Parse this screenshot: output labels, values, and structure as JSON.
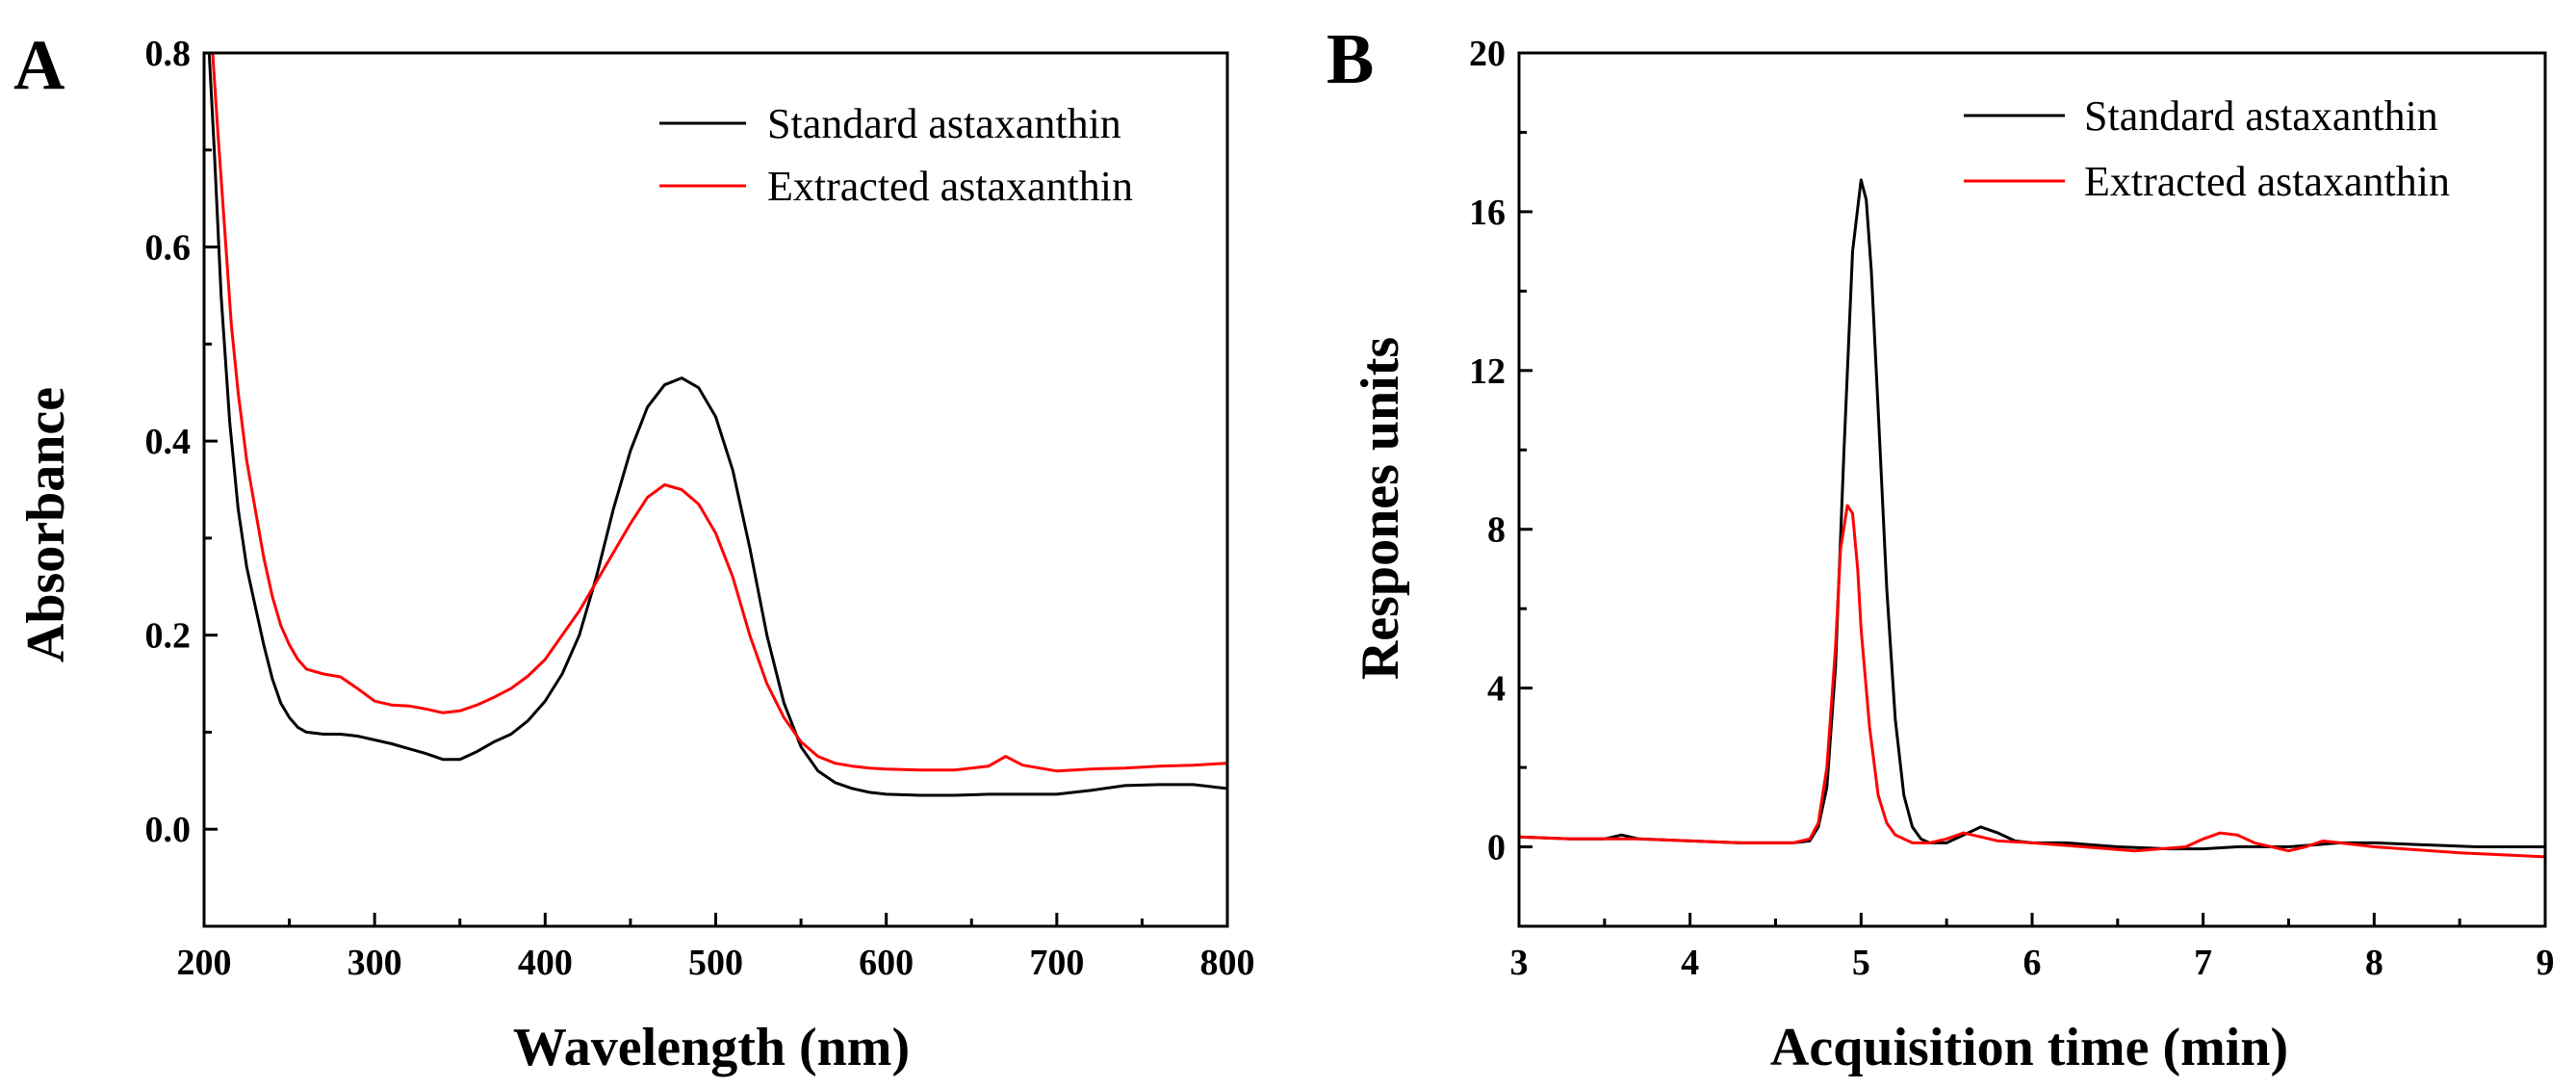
{
  "chart_data": [
    {
      "panel_label": "A",
      "type": "line",
      "xlabel": "Wavelength (nm)",
      "ylabel": "Absorbance",
      "xlim": [
        200,
        800
      ],
      "ylim": [
        -0.1,
        0.8
      ],
      "xticks": [
        200,
        300,
        400,
        500,
        600,
        700,
        800
      ],
      "yticks": [
        0.0,
        0.2,
        0.4,
        0.6,
        0.8
      ],
      "ytick_labels": [
        "0.0",
        "0.2",
        "0.4",
        "0.6",
        "0.8"
      ],
      "legend_position": "top-right",
      "series": [
        {
          "name": "Standard astaxanthin",
          "color": "#000000",
          "x": [
            203,
            206,
            210,
            215,
            220,
            225,
            230,
            235,
            240,
            245,
            250,
            255,
            260,
            270,
            280,
            290,
            300,
            310,
            320,
            330,
            340,
            350,
            360,
            370,
            380,
            390,
            400,
            410,
            420,
            430,
            440,
            450,
            460,
            470,
            480,
            490,
            500,
            510,
            520,
            530,
            540,
            550,
            560,
            570,
            580,
            590,
            600,
            620,
            640,
            660,
            680,
            700,
            720,
            740,
            760,
            780,
            800
          ],
          "y": [
            0.8,
            0.7,
            0.55,
            0.42,
            0.33,
            0.27,
            0.23,
            0.19,
            0.155,
            0.13,
            0.115,
            0.105,
            0.1,
            0.098,
            0.098,
            0.096,
            0.092,
            0.088,
            0.083,
            0.078,
            0.072,
            0.072,
            0.08,
            0.09,
            0.098,
            0.112,
            0.132,
            0.16,
            0.2,
            0.26,
            0.33,
            0.39,
            0.435,
            0.458,
            0.465,
            0.455,
            0.425,
            0.37,
            0.29,
            0.2,
            0.13,
            0.085,
            0.06,
            0.048,
            0.042,
            0.038,
            0.036,
            0.035,
            0.035,
            0.036,
            0.036,
            0.036,
            0.04,
            0.045,
            0.046,
            0.046,
            0.042
          ]
        },
        {
          "name": "Extracted astaxanthin",
          "color": "#ff0000",
          "x": [
            205,
            208,
            212,
            216,
            220,
            225,
            230,
            235,
            240,
            245,
            250,
            255,
            260,
            270,
            280,
            290,
            300,
            310,
            320,
            330,
            340,
            350,
            360,
            370,
            380,
            390,
            400,
            410,
            420,
            430,
            440,
            450,
            460,
            470,
            480,
            490,
            500,
            510,
            520,
            530,
            540,
            550,
            560,
            570,
            580,
            590,
            600,
            620,
            640,
            660,
            670,
            680,
            700,
            720,
            740,
            760,
            780,
            800
          ],
          "y": [
            0.8,
            0.72,
            0.62,
            0.52,
            0.45,
            0.38,
            0.33,
            0.28,
            0.24,
            0.21,
            0.19,
            0.175,
            0.165,
            0.16,
            0.157,
            0.145,
            0.132,
            0.128,
            0.127,
            0.124,
            0.12,
            0.122,
            0.128,
            0.136,
            0.145,
            0.158,
            0.175,
            0.2,
            0.225,
            0.255,
            0.285,
            0.315,
            0.342,
            0.355,
            0.35,
            0.335,
            0.305,
            0.26,
            0.2,
            0.15,
            0.115,
            0.09,
            0.075,
            0.068,
            0.065,
            0.063,
            0.062,
            0.061,
            0.061,
            0.065,
            0.075,
            0.066,
            0.06,
            0.062,
            0.063,
            0.065,
            0.066,
            0.068
          ]
        }
      ]
    },
    {
      "panel_label": "B",
      "type": "line",
      "xlabel": "Acquisition time (min)",
      "ylabel": "Respones units",
      "xlim": [
        3,
        9
      ],
      "ylim": [
        -2,
        20
      ],
      "xticks": [
        3,
        4,
        5,
        6,
        7,
        8,
        9
      ],
      "yticks": [
        0,
        4,
        8,
        12,
        16,
        20
      ],
      "ytick_labels": [
        "0",
        "4",
        "8",
        "12",
        "16",
        "20"
      ],
      "legend_position": "top-right",
      "series": [
        {
          "name": "Standard astaxanthin",
          "color": "#000000",
          "x": [
            3.0,
            3.3,
            3.5,
            3.6,
            3.7,
            4.0,
            4.3,
            4.6,
            4.7,
            4.75,
            4.8,
            4.85,
            4.9,
            4.95,
            5.0,
            5.03,
            5.06,
            5.1,
            5.15,
            5.2,
            5.25,
            5.3,
            5.35,
            5.4,
            5.5,
            5.6,
            5.7,
            5.8,
            5.9,
            6.0,
            6.2,
            6.5,
            6.8,
            7.0,
            7.2,
            7.5,
            7.8,
            8.0,
            8.3,
            8.6,
            9.0
          ],
          "y": [
            0.25,
            0.2,
            0.2,
            0.3,
            0.2,
            0.15,
            0.1,
            0.1,
            0.15,
            0.5,
            1.5,
            4.5,
            10.0,
            15.0,
            16.8,
            16.3,
            14.5,
            11.0,
            6.5,
            3.2,
            1.3,
            0.5,
            0.2,
            0.1,
            0.1,
            0.3,
            0.5,
            0.35,
            0.15,
            0.1,
            0.1,
            0.0,
            -0.05,
            -0.05,
            0.0,
            0.0,
            0.1,
            0.1,
            0.05,
            0.0,
            0.0
          ]
        },
        {
          "name": "Extracted astaxanthin",
          "color": "#ff0000",
          "x": [
            3.0,
            3.3,
            3.5,
            3.6,
            3.7,
            4.0,
            4.3,
            4.6,
            4.7,
            4.75,
            4.8,
            4.85,
            4.88,
            4.92,
            4.95,
            4.98,
            5.0,
            5.05,
            5.1,
            5.15,
            5.2,
            5.3,
            5.4,
            5.5,
            5.6,
            5.7,
            5.8,
            6.0,
            6.3,
            6.6,
            6.9,
            7.0,
            7.1,
            7.2,
            7.3,
            7.5,
            7.6,
            7.7,
            7.8,
            8.0,
            8.5,
            9.0
          ],
          "y": [
            0.25,
            0.2,
            0.2,
            0.2,
            0.2,
            0.15,
            0.1,
            0.1,
            0.2,
            0.6,
            2.0,
            5.0,
            7.5,
            8.6,
            8.4,
            7.0,
            5.5,
            3.0,
            1.3,
            0.6,
            0.3,
            0.1,
            0.1,
            0.2,
            0.35,
            0.25,
            0.15,
            0.1,
            0.0,
            -0.1,
            0.0,
            0.2,
            0.35,
            0.3,
            0.1,
            -0.1,
            0.0,
            0.15,
            0.1,
            0.0,
            -0.15,
            -0.25
          ]
        }
      ]
    }
  ]
}
